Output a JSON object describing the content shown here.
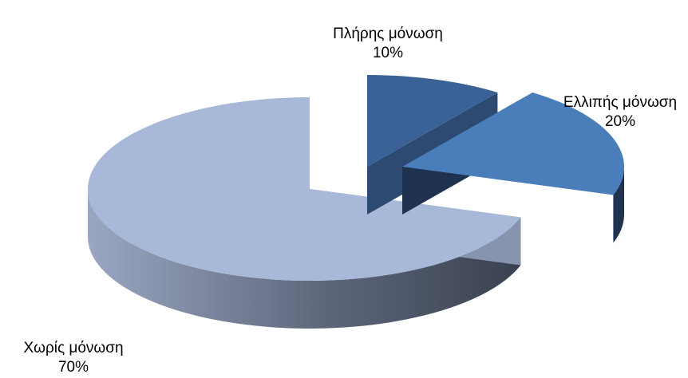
{
  "chart_data": {
    "type": "pie",
    "title": "",
    "slices": [
      {
        "label": "Πλήρης μόνωση",
        "value": 10,
        "value_label": "10%",
        "color": "#3b6296",
        "side_color": "#2a4468",
        "exploded": true
      },
      {
        "label": "Ελλιπής μόνωση",
        "value": 20,
        "value_label": "20%",
        "color": "#4a7ebb",
        "side_color": "#1f3350",
        "exploded": true
      },
      {
        "label": "Χωρίς μόνωση",
        "value": 70,
        "value_label": "70%",
        "color": "#a8b8d8",
        "side_color": "#6c7a94",
        "exploded": false
      }
    ],
    "style": "3d-exploded",
    "legend": "none"
  }
}
